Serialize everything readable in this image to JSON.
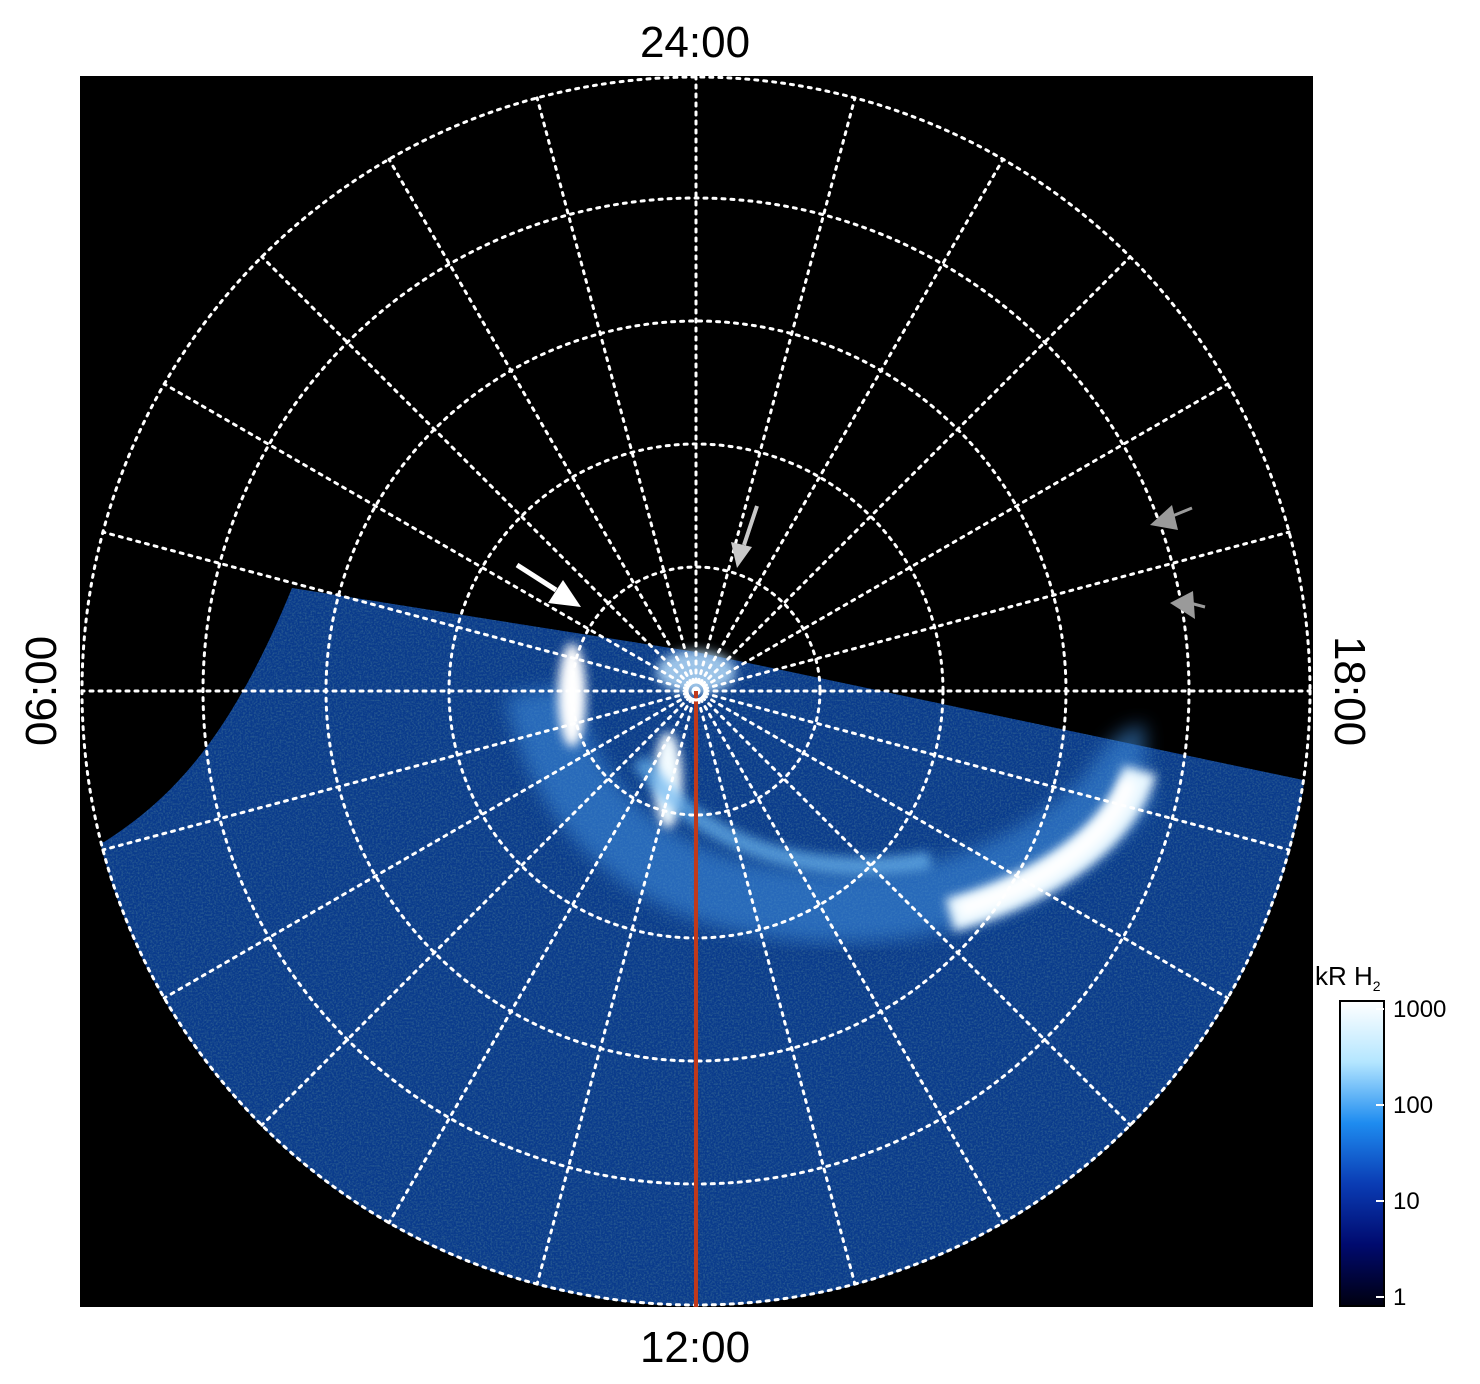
{
  "labels": {
    "top": "24:00",
    "bottom": "12:00",
    "left": "06:00",
    "right": "18:00"
  },
  "colorbar": {
    "title": "kR H",
    "title_sub": "2",
    "ticks": [
      "1000",
      "100",
      "10",
      "1"
    ],
    "colors": [
      "#000010",
      "#000a6e",
      "#0a3cb4",
      "#1e8cf0",
      "#b4e6ff",
      "#ffffff"
    ]
  },
  "colors": {
    "background": "#000000",
    "grid": "#ffffff",
    "meridian": "#c0391b",
    "arrow_primary": "#ffffff",
    "arrow_secondary": "#c8c8c8",
    "arrow_tertiary": "#9a9a9a"
  },
  "annotations": {
    "arrows": [
      "white-arrow",
      "light-gray-arrow",
      "gray-arrow-upper",
      "gray-arrow-lower"
    ]
  }
}
